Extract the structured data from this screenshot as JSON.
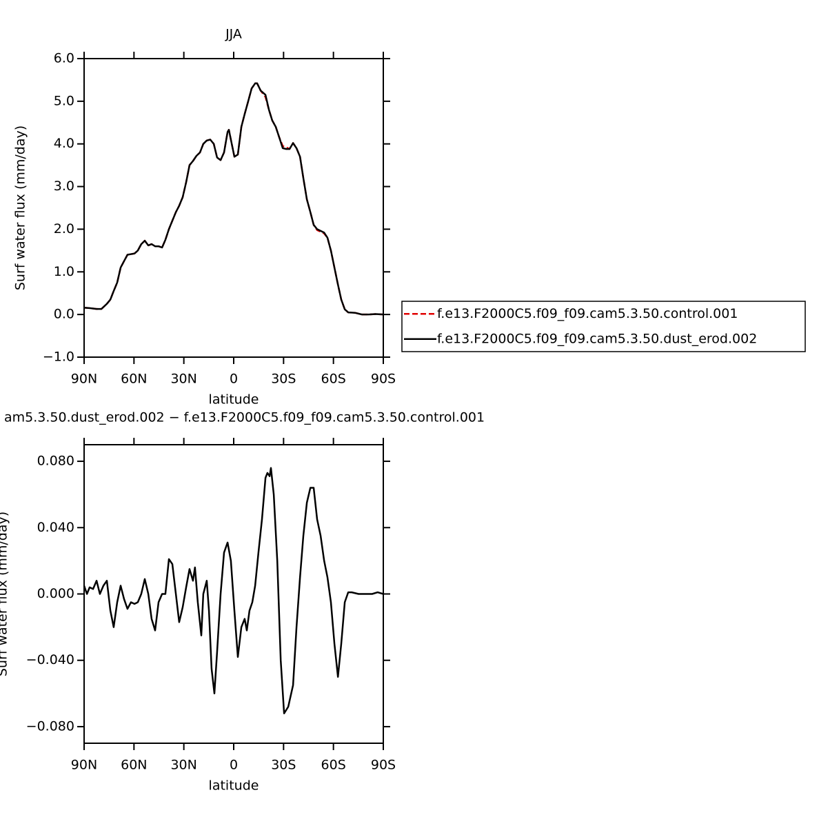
{
  "chart_data": [
    {
      "type": "line",
      "title": "JJA",
      "ylabel": "Surf water flux (mm/day)",
      "xlabel": "latitude",
      "xlim": [
        90,
        -90
      ],
      "xticks": [
        {
          "value": 90,
          "label": "90N"
        },
        {
          "value": 60,
          "label": "60N"
        },
        {
          "value": 30,
          "label": "30N"
        },
        0,
        {
          "value": -30,
          "label": "30S"
        },
        {
          "value": -60,
          "label": "60S"
        },
        {
          "value": -90,
          "label": "90S"
        }
      ],
      "ylim": [
        -1,
        6
      ],
      "yticks": [
        {
          "value": -1,
          "label": "−1.0"
        },
        {
          "value": 0,
          "label": "0.0"
        },
        {
          "value": 1,
          "label": "1.0"
        },
        {
          "value": 2,
          "label": "2.0"
        },
        {
          "value": 3,
          "label": "3.0"
        },
        {
          "value": 4,
          "label": "4.0"
        },
        {
          "value": 5,
          "label": "5.0"
        },
        {
          "value": 6,
          "label": "6.0"
        }
      ],
      "legend": "outside-right",
      "x": [
        90,
        86.7,
        82.5,
        79.6,
        76.3,
        74.2,
        72.2,
        70.1,
        68,
        66,
        63.9,
        59.7,
        57.7,
        55.6,
        53.5,
        51.4,
        49.4,
        47.3,
        45.2,
        43.1,
        41.1,
        39,
        36.9,
        34.8,
        32.8,
        30.7,
        28.6,
        26.6,
        24.5,
        22.4,
        20.3,
        18.3,
        16.2,
        14.1,
        12,
        10,
        7.9,
        5.8,
        3.7,
        2.9,
        1.7,
        -0.4,
        -2.5,
        -4.6,
        -6.6,
        -8.7,
        -10.8,
        -12.9,
        -14.1,
        -16.2,
        -19.1,
        -21.2,
        -23.2,
        -25.3,
        -27.4,
        -29.5,
        -31.6,
        -33.6,
        -35.7,
        -37.8,
        -39.9,
        -41.9,
        -44,
        -46.1,
        -48.1,
        -50.2,
        -54.4,
        -56.4,
        -58.5,
        -60.6,
        -62.7,
        -64.7,
        -66.8,
        -68.9,
        -73,
        -77.1,
        -81.3,
        -85.4,
        -90
      ],
      "series": [
        {
          "name": "f.e13.F2000C5.f09_f09.cam5.3.50.control.001",
          "color": "#e00000",
          "line_style": "dashed",
          "values": [
            0.16,
            0.15,
            0.13,
            0.13,
            0.25,
            0.35,
            0.55,
            0.75,
            1.1,
            1.25,
            1.4,
            1.43,
            1.5,
            1.65,
            1.73,
            1.62,
            1.65,
            1.6,
            1.6,
            1.57,
            1.75,
            2.0,
            2.2,
            2.4,
            2.55,
            2.75,
            3.1,
            3.5,
            3.6,
            3.72,
            3.8,
            4.0,
            4.08,
            4.1,
            4.0,
            3.68,
            3.62,
            3.8,
            4.28,
            4.33,
            4.1,
            3.7,
            3.75,
            4.4,
            4.7,
            5.0,
            5.3,
            5.42,
            5.42,
            5.25,
            5.1,
            4.8,
            4.55,
            4.4,
            4.15,
            3.95,
            3.92,
            3.88,
            4.02,
            3.9,
            3.7,
            3.2,
            2.7,
            2.4,
            2.1,
            1.98,
            1.9,
            1.8,
            1.5,
            1.1,
            0.7,
            0.35,
            0.12,
            0.05,
            0.04,
            0.0,
            0.0,
            0.01,
            0.0
          ]
        },
        {
          "name": "f.e13.F2000C5.f09_f09.cam5.3.50.dust_erod.002",
          "color": "#000000",
          "line_style": "solid",
          "values": [
            0.16,
            0.15,
            0.13,
            0.13,
            0.25,
            0.35,
            0.55,
            0.75,
            1.1,
            1.25,
            1.4,
            1.43,
            1.5,
            1.65,
            1.73,
            1.62,
            1.65,
            1.6,
            1.6,
            1.57,
            1.75,
            2.0,
            2.2,
            2.4,
            2.55,
            2.75,
            3.1,
            3.5,
            3.6,
            3.72,
            3.8,
            4.0,
            4.08,
            4.1,
            4.0,
            3.68,
            3.62,
            3.8,
            4.28,
            4.33,
            4.1,
            3.7,
            3.75,
            4.4,
            4.7,
            5.0,
            5.3,
            5.42,
            5.42,
            5.25,
            5.15,
            4.8,
            4.55,
            4.4,
            4.15,
            3.9,
            3.88,
            3.88,
            4.02,
            3.9,
            3.7,
            3.2,
            2.7,
            2.4,
            2.1,
            2.0,
            1.92,
            1.8,
            1.5,
            1.1,
            0.7,
            0.35,
            0.12,
            0.05,
            0.04,
            0.0,
            0.0,
            0.01,
            0.0
          ]
        }
      ]
    },
    {
      "type": "line",
      "title": "am5.3.50.dust_erod.002 − f.e13.F2000C5.f09_f09.cam5.3.50.control.001",
      "ylabel": "Surf water flux (mm/day)",
      "xlabel": "latitude",
      "xlim": [
        90,
        -90
      ],
      "xticks": [
        {
          "value": 90,
          "label": "90N"
        },
        {
          "value": 60,
          "label": "60N"
        },
        {
          "value": 30,
          "label": "30N"
        },
        0,
        {
          "value": -30,
          "label": "30S"
        },
        {
          "value": -60,
          "label": "60S"
        },
        {
          "value": -90,
          "label": "90S"
        }
      ],
      "ylim": [
        -0.09,
        0.09
      ],
      "yticks": [
        {
          "value": -0.08,
          "label": "−0.080"
        },
        {
          "value": -0.04,
          "label": "−0.040"
        },
        {
          "value": 0,
          "label": "0.000"
        },
        {
          "value": 0.04,
          "label": "0.040"
        },
        {
          "value": 0.08,
          "label": "0.080"
        }
      ],
      "x": [
        90,
        88.3,
        86.7,
        84.6,
        82.5,
        80.5,
        78.4,
        76.3,
        74.2,
        72.2,
        70.1,
        68,
        66,
        63.9,
        61.8,
        59.7,
        57.7,
        55.6,
        53.5,
        51.4,
        49.4,
        47.3,
        45.2,
        43.1,
        41.1,
        39,
        36.9,
        34.8,
        32.8,
        30.7,
        28.6,
        26.6,
        24.5,
        23.3,
        21.6,
        19.5,
        18.3,
        16.2,
        14.9,
        13.3,
        11.6,
        10,
        7.9,
        5.8,
        3.7,
        1.7,
        -0.4,
        -2.5,
        -4.6,
        -6.6,
        -7.9,
        -9.5,
        -11.2,
        -12.9,
        -14.9,
        -17,
        -19.1,
        -20.3,
        -21.6,
        -22.4,
        -24.1,
        -26.2,
        -28.3,
        -30.3,
        -32.8,
        -35.7,
        -37.8,
        -39.9,
        -41.9,
        -44,
        -46.1,
        -48.1,
        -50.2,
        -52.3,
        -54.4,
        -56.4,
        -58.5,
        -60.6,
        -62.7,
        -64.7,
        -66.8,
        -68.9,
        -71,
        -75.1,
        -79.2,
        -83.3,
        -86.6,
        -90
      ],
      "series": [
        {
          "color": "#000000",
          "line_style": "solid",
          "values": [
            0.005,
            0.0,
            0.004,
            0.003,
            0.008,
            0.0,
            0.005,
            0.008,
            -0.01,
            -0.02,
            -0.005,
            0.005,
            -0.003,
            -0.009,
            -0.005,
            -0.006,
            -0.005,
            0.0,
            0.009,
            0.0,
            -0.015,
            -0.022,
            -0.005,
            0.0,
            0.0,
            0.021,
            0.018,
            0.0,
            -0.017,
            -0.008,
            0.004,
            0.015,
            0.008,
            0.016,
            -0.005,
            -0.025,
            0.0,
            0.008,
            -0.01,
            -0.045,
            -0.06,
            -0.035,
            0.0,
            0.025,
            0.031,
            0.02,
            -0.01,
            -0.038,
            -0.02,
            -0.015,
            -0.022,
            -0.01,
            -0.005,
            0.005,
            0.025,
            0.045,
            0.07,
            0.073,
            0.071,
            0.076,
            0.06,
            0.02,
            -0.04,
            -0.072,
            -0.068,
            -0.055,
            -0.02,
            0.01,
            0.035,
            0.055,
            0.064,
            0.064,
            0.045,
            0.035,
            0.02,
            0.01,
            -0.005,
            -0.03,
            -0.05,
            -0.03,
            -0.005,
            0.001,
            0.001,
            0.0,
            0.0,
            0.0,
            0.001,
            0.0
          ]
        }
      ]
    }
  ]
}
